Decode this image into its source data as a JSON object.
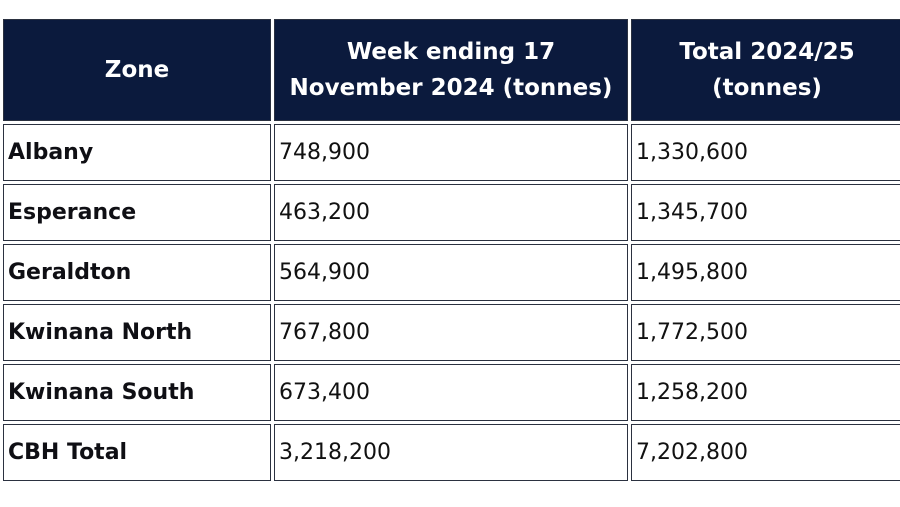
{
  "chart_data": {
    "type": "table",
    "columns": [
      "Zone",
      "Week ending 17 November 2024 (tonnes)",
      "Total 2024/25 (tonnes)"
    ],
    "rows": [
      [
        "Albany",
        "748,900",
        "1,330,600"
      ],
      [
        "Esperance",
        "463,200",
        "1,345,700"
      ],
      [
        "Geraldton",
        "564,900",
        "1,495,800"
      ],
      [
        "Kwinana North",
        "767,800",
        "1,772,500"
      ],
      [
        "Kwinana South",
        "673,400",
        "1,258,200"
      ],
      [
        "CBH Total",
        "3,218,200",
        "7,202,800"
      ]
    ]
  },
  "colors": {
    "header_bg": "#0b1a3d",
    "header_text": "#ffffff",
    "border": "#2b3140"
  }
}
